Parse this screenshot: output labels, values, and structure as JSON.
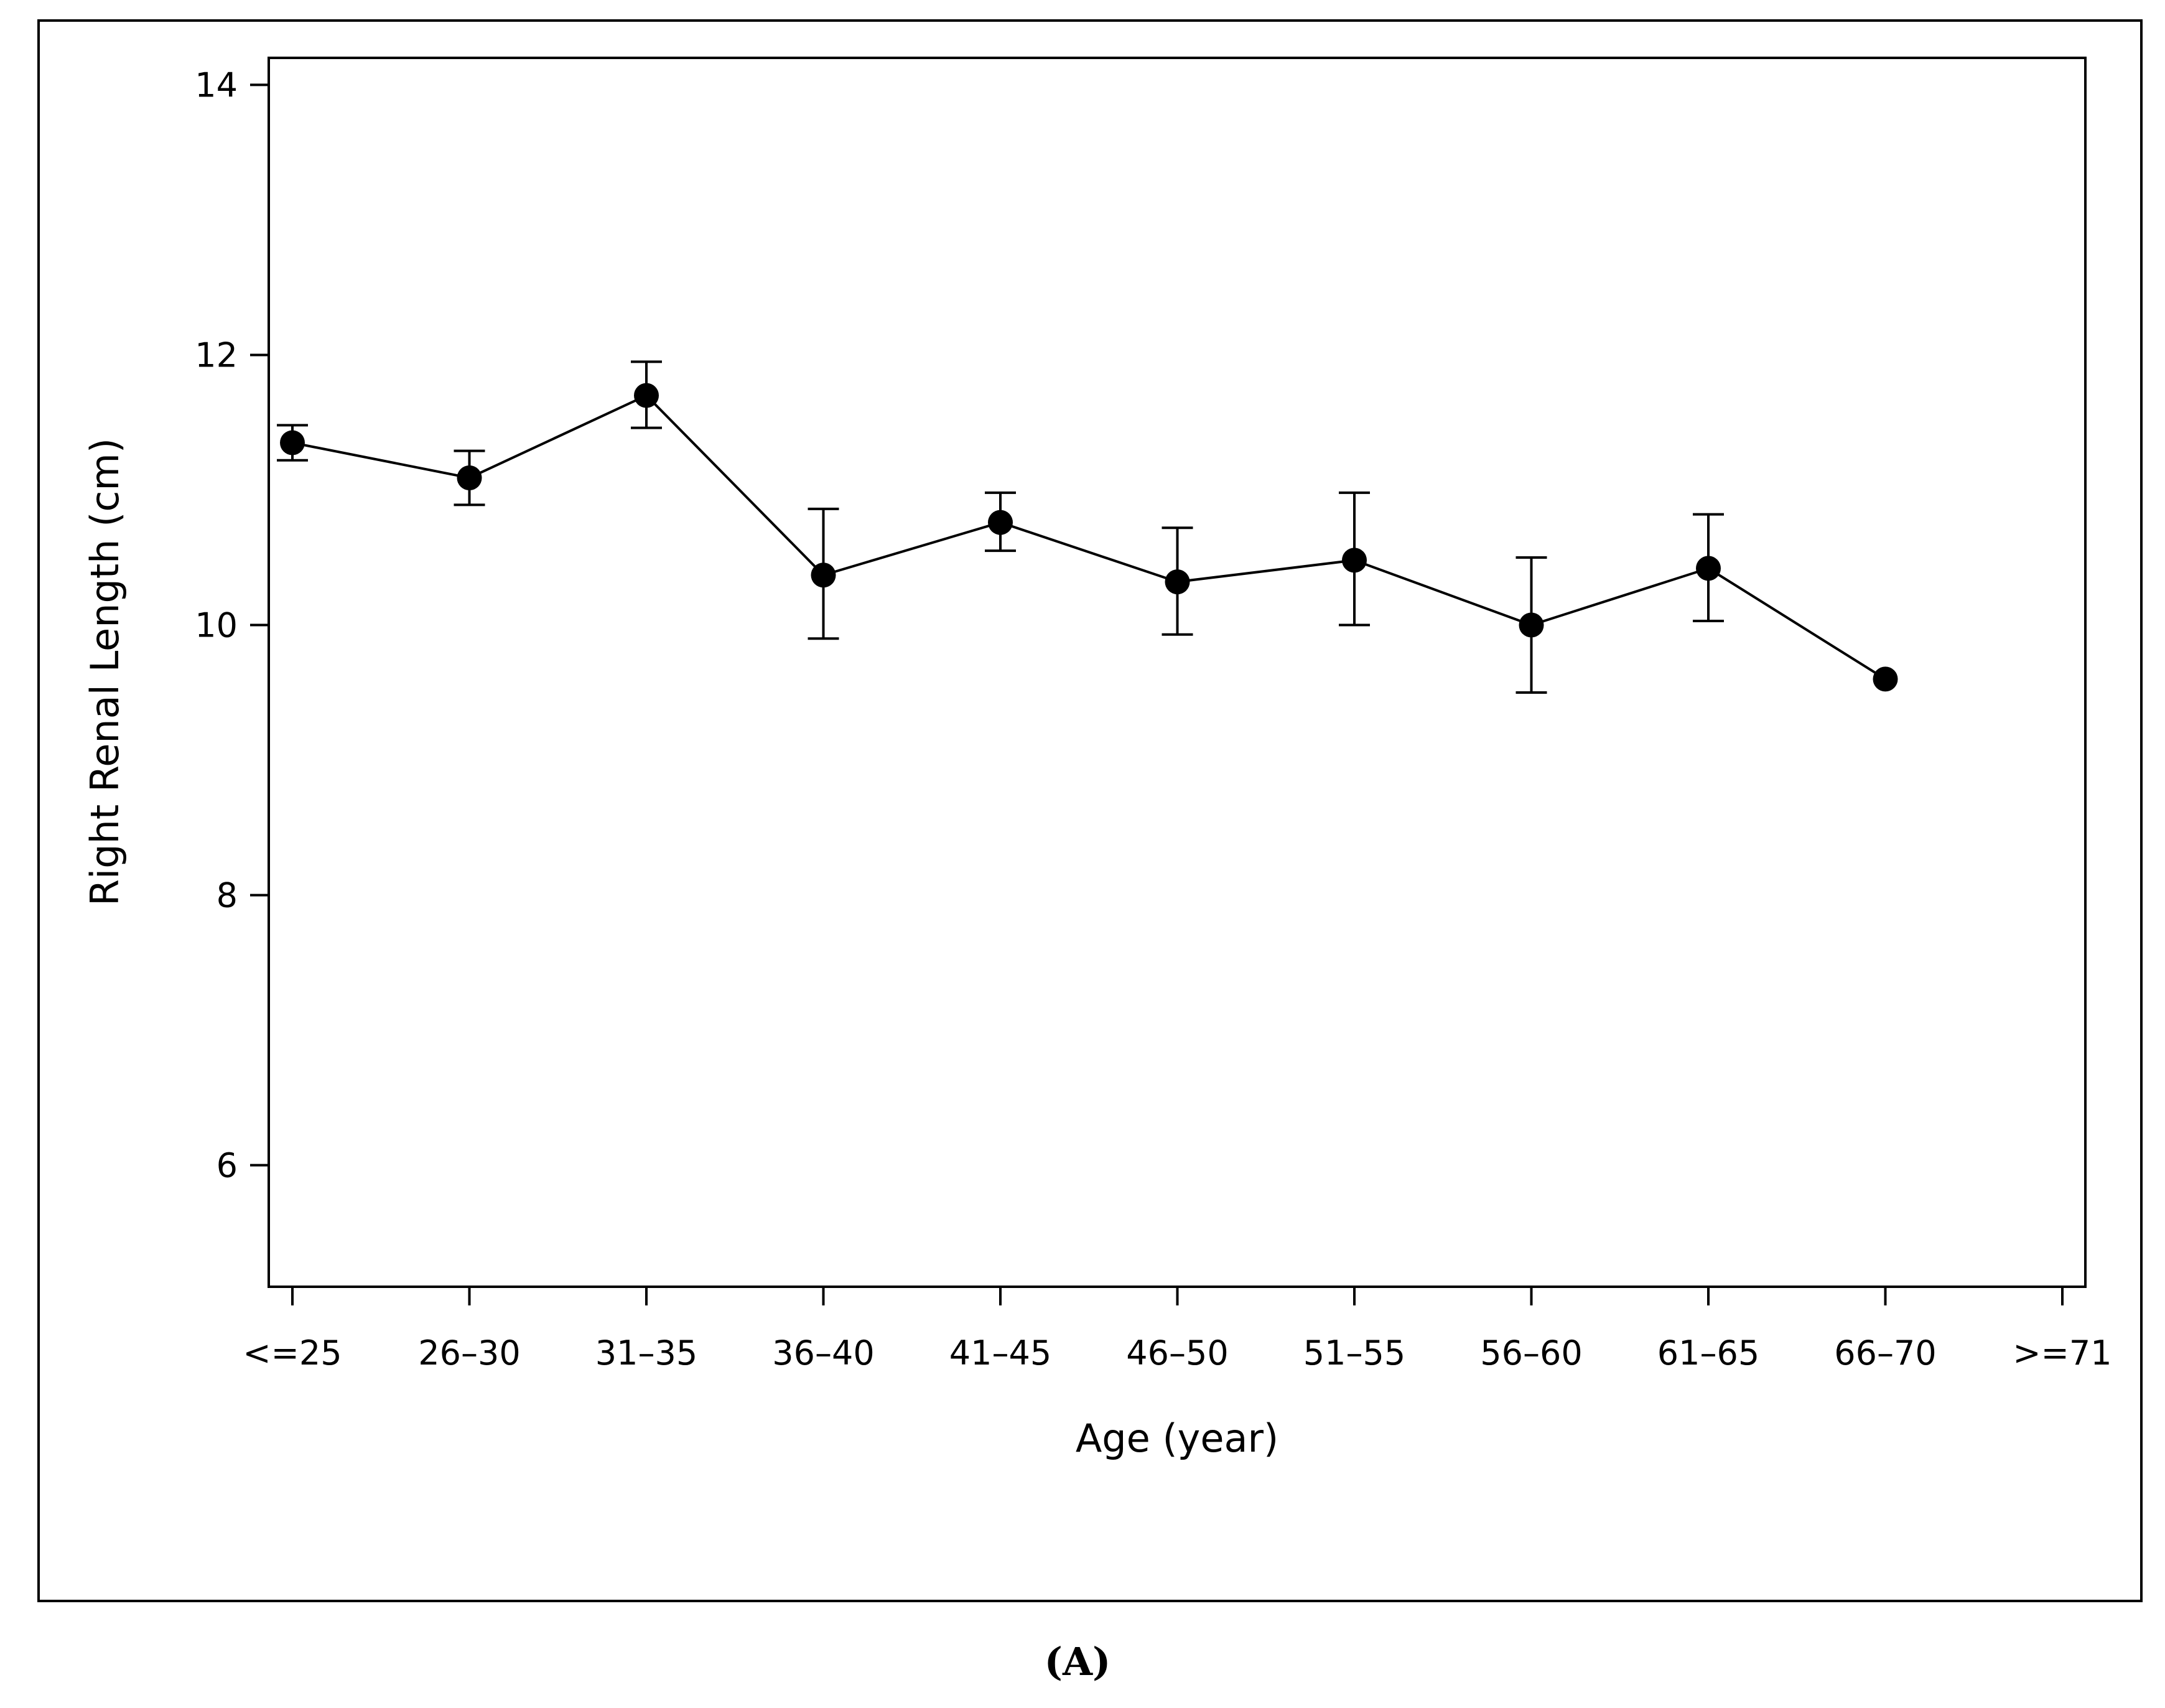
{
  "chart_data": {
    "type": "line",
    "xlabel": "Age (year)",
    "ylabel": "Right Renal Length (cm)",
    "categories": [
      "<=25",
      "26–30",
      "31–35",
      "36–40",
      "41–45",
      "46–50",
      "51–55",
      "56–60",
      "61–65",
      "66–70",
      ">=71"
    ],
    "y_ticks": [
      6,
      8,
      10,
      12,
      14
    ],
    "ylim": [
      5.1,
      14.2
    ],
    "grid": false,
    "series": [
      {
        "values": [
          11.35,
          11.09,
          11.7,
          10.37,
          10.76,
          10.32,
          10.48,
          10.0,
          10.42,
          9.6,
          null
        ],
        "err_low": [
          11.22,
          10.89,
          11.46,
          9.9,
          10.55,
          9.93,
          10.0,
          9.5,
          10.03,
          null,
          null
        ],
        "err_high": [
          11.48,
          11.29,
          11.95,
          10.86,
          10.98,
          10.72,
          10.98,
          10.5,
          10.82,
          null,
          null
        ]
      }
    ]
  },
  "panel_label": "(A)",
  "colors": {
    "line": "#000000",
    "marker": "#000000",
    "background": "#ffffff"
  }
}
